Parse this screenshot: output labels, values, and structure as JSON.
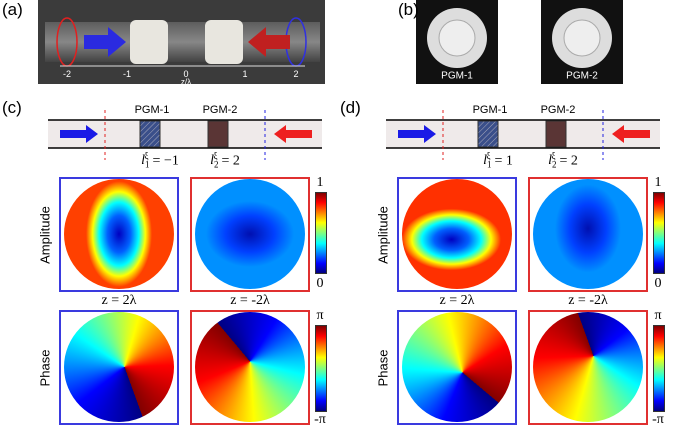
{
  "panels": [
    {
      "label": "(a)",
      "axis_ticks": [
        "-2",
        "-1",
        "0",
        "1",
        "2"
      ],
      "axis_label": "z/λ"
    },
    {
      "label": "(b)",
      "captions": [
        "PGM-1",
        "PGM-2"
      ]
    },
    {
      "label": "(c)",
      "elements": [
        "PGM-1",
        "PGM-2"
      ],
      "charges": [
        {
          "symbol": "l",
          "sub": "1",
          "sup": "ξ",
          "value": "= −1"
        },
        {
          "symbol": "l",
          "sub": "2",
          "sup": "ξ",
          "value": "= 2"
        }
      ],
      "row_labels": [
        "Amplitude",
        "Phase"
      ],
      "positions": [
        "z = 2λ",
        "z = -2λ"
      ],
      "amplitude_scale": [
        "1",
        "0"
      ],
      "phase_scale": [
        "π",
        "-π"
      ]
    },
    {
      "label": "(d)",
      "elements": [
        "PGM-1",
        "PGM-2"
      ],
      "charges": [
        {
          "symbol": "l",
          "sub": "1",
          "sup": "ξ",
          "value": "= 1"
        },
        {
          "symbol": "l",
          "sub": "2",
          "sup": "ξ",
          "value": "= 2"
        }
      ],
      "row_labels": [
        "Amplitude",
        "Phase"
      ],
      "positions": [
        "z = 2λ",
        "z = -2λ"
      ],
      "amplitude_scale": [
        "1",
        "0"
      ],
      "phase_scale": [
        "π",
        "-π"
      ]
    }
  ]
}
